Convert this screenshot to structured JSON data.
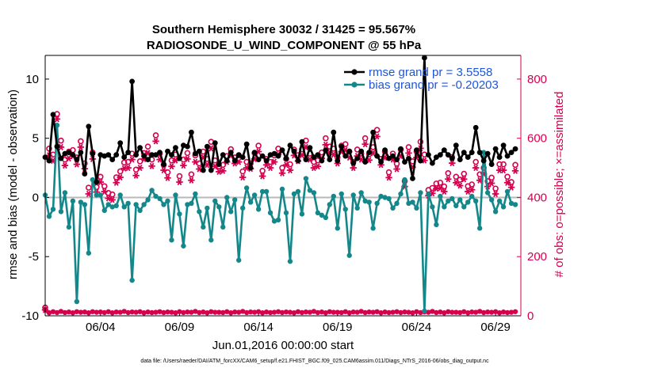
{
  "chart_data": {
    "type": "line",
    "title": "Southern Hemisphere 30032 / 31425 = 95.567%",
    "subtitle": "RADIOSONDE_U_WIND_COMPONENT @ 55 hPa",
    "xlabel": "Jun.01,2016 00:00:00 start",
    "ylabel": "rmse and bias (model - observation)",
    "y2label": "# of obs: o=possible; ×=assimilated",
    "footer": "data file: /Users/raeder/DAI/ATM_forcXX/CAM6_setup/f.e21.FHIST_BGC.f09_025.CAM6assim.011/Diags_NTrS_2016-06/obs_diag_output.nc",
    "xlim": [
      0.5,
      30.6
    ],
    "ylim": [
      -10,
      12
    ],
    "y2lim": [
      0,
      880
    ],
    "x_ticks": [
      {
        "x": 4,
        "label": "06/04"
      },
      {
        "x": 9,
        "label": "06/09"
      },
      {
        "x": 14,
        "label": "06/14"
      },
      {
        "x": 19,
        "label": "06/19"
      },
      {
        "x": 24,
        "label": "06/24"
      },
      {
        "x": 29,
        "label": "06/29"
      }
    ],
    "y_ticks": [
      {
        "v": -10,
        "label": "-10"
      },
      {
        "v": -5,
        "label": "-5"
      },
      {
        "v": 0,
        "label": "0"
      },
      {
        "v": 5,
        "label": "5"
      },
      {
        "v": 10,
        "label": "10"
      }
    ],
    "y2_ticks": [
      {
        "v": 0,
        "label": "0"
      },
      {
        "v": 200,
        "label": "200"
      },
      {
        "v": 400,
        "label": "400"
      },
      {
        "v": 600,
        "label": "600"
      },
      {
        "v": 800,
        "label": "800"
      }
    ],
    "x": [
      0.5,
      0.75,
      1,
      1.25,
      1.5,
      1.75,
      2,
      2.25,
      2.5,
      2.75,
      3,
      3.25,
      3.5,
      3.75,
      4,
      4.25,
      4.5,
      4.75,
      5,
      5.25,
      5.5,
      5.75,
      6,
      6.25,
      6.5,
      6.75,
      7,
      7.25,
      7.5,
      7.75,
      8,
      8.25,
      8.5,
      8.75,
      9,
      9.25,
      9.5,
      9.75,
      10,
      10.25,
      10.5,
      10.75,
      11,
      11.25,
      11.5,
      11.75,
      12,
      12.25,
      12.5,
      12.75,
      13,
      13.25,
      13.5,
      13.75,
      14,
      14.25,
      14.5,
      14.75,
      15,
      15.25,
      15.5,
      15.75,
      16,
      16.25,
      16.5,
      16.75,
      17,
      17.25,
      17.5,
      17.75,
      18,
      18.25,
      18.5,
      18.75,
      19,
      19.25,
      19.5,
      19.75,
      20,
      20.25,
      20.5,
      20.75,
      21,
      21.25,
      21.5,
      21.75,
      22,
      22.25,
      22.5,
      22.75,
      23,
      23.25,
      23.5,
      23.75,
      24,
      24.25,
      24.5,
      24.75,
      25,
      25.25,
      25.5,
      25.75,
      26,
      26.25,
      26.5,
      26.75,
      27,
      27.25,
      27.5,
      27.75,
      28,
      28.25,
      28.5,
      28.75,
      29,
      29.25,
      29.5,
      29.75,
      30,
      30.25
    ],
    "series": [
      {
        "name": "rmse grand pr = 3.5558",
        "color": "#000000",
        "marker": "hexagram",
        "values": [
          3.4,
          3.1,
          7.0,
          4.3,
          3.3,
          3.7,
          3.8,
          3.6,
          3.2,
          3.8,
          2.0,
          6.0,
          3.7,
          1.3,
          3.6,
          3.5,
          3.6,
          3.2,
          3.6,
          4.6,
          3.4,
          3.8,
          9.8,
          3.6,
          4.2,
          3.5,
          3.2,
          3.6,
          3.6,
          3.8,
          2.8,
          3.9,
          3.6,
          4.2,
          3.3,
          4.4,
          4.3,
          5.5,
          3.7,
          3.9,
          2.3,
          4.3,
          2.3,
          4.6,
          2.8,
          3.6,
          3.1,
          3.8,
          3.1,
          3.6,
          3.4,
          4.5,
          2.5,
          3.8,
          3.2,
          3.5,
          3.1,
          3.6,
          3.7,
          3.5,
          4.0,
          3.3,
          4.4,
          3.9,
          3.1,
          4.7,
          3.2,
          4.2,
          3.4,
          3.6,
          3.1,
          4.0,
          3.2,
          5.5,
          3.1,
          4.3,
          3.5,
          3.9,
          2.9,
          3.3,
          3.9,
          3.0,
          3.8,
          5.5,
          3.5,
          3.0,
          4.0,
          3.3,
          3.5,
          3.2,
          4.1,
          3.0,
          3.3,
          1.6,
          4.0,
          3.1,
          11.8,
          3.6,
          2.9,
          3.4,
          3.6,
          4.0,
          3.6,
          3.3,
          4.4,
          3.2,
          3.8,
          3.4,
          3.8,
          5.9,
          3.8,
          3.1,
          3.7,
          2.8,
          4.1,
          3.4,
          4.4,
          3.5,
          3.8,
          4.1
        ]
      },
      {
        "name": "bias grand pr = -0.20203",
        "color": "#14878a",
        "marker": "circle",
        "values": [
          0.2,
          -1.6,
          -1.0,
          6.1,
          -1.2,
          0.4,
          -2.5,
          -0.3,
          -8.8,
          -0.4,
          -0.6,
          -4.7,
          1.5,
          0.2,
          0.2,
          -1.1,
          -0.6,
          -0.8,
          -0.7,
          0.2,
          -0.8,
          -0.5,
          -7.0,
          -0.6,
          -1.1,
          -0.6,
          -0.2,
          0.6,
          0.1,
          -0.1,
          -0.6,
          -0.3,
          -3.6,
          0.2,
          -1.4,
          -4.1,
          -0.6,
          -0.5,
          0.3,
          -1.2,
          -2.5,
          -0.9,
          -3.6,
          -0.3,
          -0.8,
          -2.5,
          0.0,
          -1.2,
          -0.2,
          -5.3,
          -0.9,
          0.8,
          -0.4,
          0.2,
          -1.0,
          0.5,
          0.5,
          -1.3,
          -2.0,
          -1.9,
          0.7,
          -1.3,
          -5.4,
          0.3,
          0.5,
          -1.4,
          1.6,
          0.6,
          0.4,
          -1.3,
          -1.5,
          -1.7,
          -0.6,
          0.1,
          -2.6,
          0.3,
          -1.0,
          -4.9,
          0.2,
          -0.9,
          0.4,
          -0.3,
          -0.4,
          -2.6,
          -0.5,
          0.1,
          0.0,
          -0.1,
          -0.9,
          -0.5,
          0.3,
          1.5,
          -0.5,
          -0.4,
          -0.9,
          0.4,
          -9.6,
          0.3,
          -0.8,
          -2.3,
          0.1,
          -0.8,
          -0.3,
          -0.1,
          -0.7,
          -0.2,
          -0.8,
          -0.4,
          0.1,
          -0.3,
          -2.6,
          3.8,
          0.4,
          -0.2,
          -1.2,
          -0.3,
          -0.8,
          0.5,
          -0.5,
          -0.6
        ]
      }
    ],
    "obs_possible": {
      "name": "possible",
      "marker": "o",
      "color": "#d6004f",
      "values": [
        28,
        565,
        545,
        682,
        592,
        528,
        555,
        560,
        535,
        590,
        515,
        433,
        552,
        435,
        470,
        438,
        415,
        410,
        468,
        488,
        518,
        520,
        548,
        494,
        522,
        550,
        572,
        528,
        610,
        548,
        510,
        485,
        525,
        545,
        472,
        528,
        550,
        478,
        542,
        515,
        555,
        530,
        588,
        525,
        505,
        510,
        540,
        563,
        535,
        542,
        488,
        520,
        515,
        550,
        575,
        490,
        530,
        520,
        542,
        565,
        500,
        530,
        512,
        562,
        543,
        563,
        592,
        548,
        520,
        525,
        552,
        600,
        572,
        565,
        535,
        575,
        580,
        555,
        520,
        562,
        548,
        600,
        546,
        570,
        628,
        530,
        555,
        485,
        548,
        514,
        562,
        455,
        570,
        522,
        555,
        588,
        545,
        425,
        432,
        447,
        450,
        437,
        482,
        536,
        470,
        460,
        480,
        438,
        444,
        520,
        478,
        500,
        455,
        467,
        430,
        512,
        512,
        470,
        452,
        510
      ]
    },
    "obs_assimilated": {
      "name": "assimilated",
      "marker": "*",
      "color": "#d6004f",
      "values": [
        20,
        542,
        524,
        665,
        570,
        508,
        532,
        540,
        512,
        570,
        497,
        412,
        530,
        418,
        452,
        420,
        397,
        392,
        450,
        468,
        498,
        500,
        528,
        474,
        500,
        530,
        550,
        506,
        590,
        528,
        492,
        466,
        505,
        525,
        452,
        508,
        530,
        458,
        520,
        496,
        535,
        510,
        566,
        505,
        487,
        490,
        520,
        542,
        515,
        520,
        468,
        500,
        497,
        530,
        555,
        472,
        510,
        500,
        520,
        545,
        482,
        510,
        492,
        542,
        523,
        543,
        570,
        528,
        500,
        505,
        532,
        578,
        552,
        545,
        515,
        555,
        560,
        535,
        500,
        540,
        528,
        580,
        526,
        550,
        606,
        510,
        535,
        467,
        528,
        496,
        540,
        437,
        550,
        502,
        535,
        566,
        525,
        406,
        414,
        430,
        432,
        420,
        462,
        516,
        450,
        440,
        462,
        420,
        426,
        500,
        458,
        480,
        437,
        448,
        412,
        492,
        492,
        450,
        434,
        490
      ]
    },
    "obs_bottom": [
      20,
      10,
      14,
      11,
      15,
      11,
      13,
      10,
      14,
      12,
      13,
      10,
      14,
      12,
      13,
      11,
      14,
      10,
      13,
      12,
      15,
      11,
      13,
      12,
      14,
      10,
      13,
      11,
      12,
      14,
      11,
      13,
      12,
      10,
      14,
      11,
      13,
      12,
      15,
      11,
      13,
      10,
      14,
      12,
      12,
      11,
      14,
      10,
      13,
      12,
      15,
      11,
      13,
      12,
      14,
      10,
      13,
      11,
      12,
      14,
      11,
      13,
      12,
      10,
      14,
      11,
      13,
      12,
      15,
      11,
      13,
      10,
      14,
      12,
      12,
      11,
      14,
      10,
      13,
      12,
      15,
      11,
      13,
      12,
      14,
      10,
      13,
      11,
      12,
      14,
      11,
      13,
      12,
      10,
      14,
      11,
      13,
      12,
      15,
      11,
      13,
      10,
      14,
      12,
      12,
      11,
      14,
      10,
      13,
      12,
      15,
      11,
      13,
      12,
      14,
      10,
      13,
      11,
      12,
      14
    ]
  }
}
